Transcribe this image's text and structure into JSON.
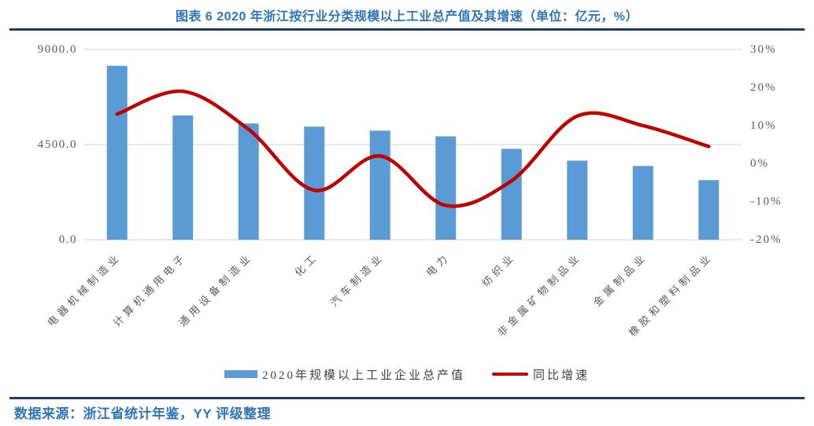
{
  "page": {
    "title": "图表 6 2020 年浙江按行业分类规模以上工业总产值及其增速（单位：亿元，%）",
    "source_note": "数据来源：浙江省统计年鉴，YY 评级整理"
  },
  "colors": {
    "title_blue": "#2E75B6",
    "rule_navy": "#1F3864",
    "bar_blue": "#5B9BD5",
    "line_red": "#C00000",
    "gridline_gray": "#D9D9D9",
    "axis_text_gray": "#595959",
    "legend_text_gray": "#3f3f3f"
  },
  "chart_data": {
    "type": "bar",
    "subtype": "combo-bar-line",
    "title": "2020 年浙江按行业分类规模以上工业总产值及其增速",
    "unit_note": "单位：亿元，%",
    "categories": [
      "电器机械制造业",
      "计算机通用电子",
      "通用设备制造业",
      "化工",
      "汽车制造业",
      "电力",
      "纺织业",
      "非金属矿物制品业",
      "金属制品业",
      "橡胶和塑料制品业"
    ],
    "series": [
      {
        "name": "2020年规模以上工业企业总产值",
        "type": "bar",
        "axis": "left",
        "color": "#5B9BD5",
        "values": [
          8230,
          5880,
          5500,
          5350,
          5160,
          4890,
          4300,
          3740,
          3490,
          2820
        ]
      },
      {
        "name": "同比增速",
        "type": "line",
        "axis": "right",
        "color": "#C00000",
        "values": [
          13,
          19,
          9,
          -7,
          2,
          -11,
          -4.5,
          12.5,
          10,
          4.5
        ]
      }
    ],
    "left_axis": {
      "min": 0,
      "max": 9000,
      "ticks": [
        {
          "value": 9000,
          "label": "9000.0"
        },
        {
          "value": 4500,
          "label": "4500.0"
        },
        {
          "value": 0,
          "label": "0.0"
        }
      ]
    },
    "right_axis": {
      "min": -20,
      "max": 30,
      "ticks": [
        {
          "value": 30,
          "label": "30%"
        },
        {
          "value": 20,
          "label": "20%"
        },
        {
          "value": 10,
          "label": "10%"
        },
        {
          "value": 0,
          "label": "0%"
        },
        {
          "value": -10,
          "label": "-10%"
        },
        {
          "value": -20,
          "label": "-20%"
        }
      ]
    },
    "grid": true,
    "legend_position": "bottom"
  }
}
